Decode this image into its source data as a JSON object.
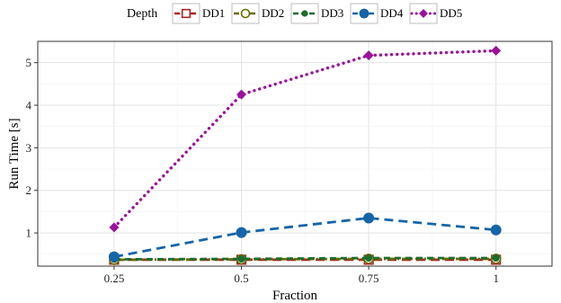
{
  "chart_data": {
    "type": "line",
    "title": "",
    "xlabel": "Fraction",
    "ylabel": "Run Time [s]",
    "x": [
      0.25,
      0.5,
      0.75,
      1
    ],
    "x_tick_labels": [
      "0.25",
      "0.5",
      "0.75",
      "1"
    ],
    "y_ticks": [
      1,
      2,
      3,
      4,
      5
    ],
    "xlim": [
      0.1,
      1.11
    ],
    "ylim": [
      0.22,
      5.5
    ],
    "grid": true,
    "legend": {
      "title": "Depth",
      "position": "top"
    },
    "series": [
      {
        "name": "DD1",
        "color": "#b22222",
        "marker": "square-open",
        "dash": "long-dash",
        "values": [
          0.37,
          0.37,
          0.37,
          0.37
        ]
      },
      {
        "name": "DD2",
        "color": "#6b6b00",
        "marker": "circle-open",
        "dash": "dot-dash",
        "values": [
          0.37,
          0.38,
          0.39,
          0.39
        ]
      },
      {
        "name": "DD3",
        "color": "#1a6e2e",
        "marker": "circle-small",
        "dash": "dash",
        "values": [
          0.38,
          0.39,
          0.41,
          0.41
        ]
      },
      {
        "name": "DD4",
        "color": "#1565a8",
        "marker": "circle-large",
        "dash": "long-dash",
        "values": [
          0.44,
          1.01,
          1.35,
          1.07
        ]
      },
      {
        "name": "DD5",
        "color": "#9b119b",
        "marker": "diamond",
        "dash": "dot",
        "values": [
          1.13,
          4.25,
          5.17,
          5.28
        ]
      }
    ]
  }
}
